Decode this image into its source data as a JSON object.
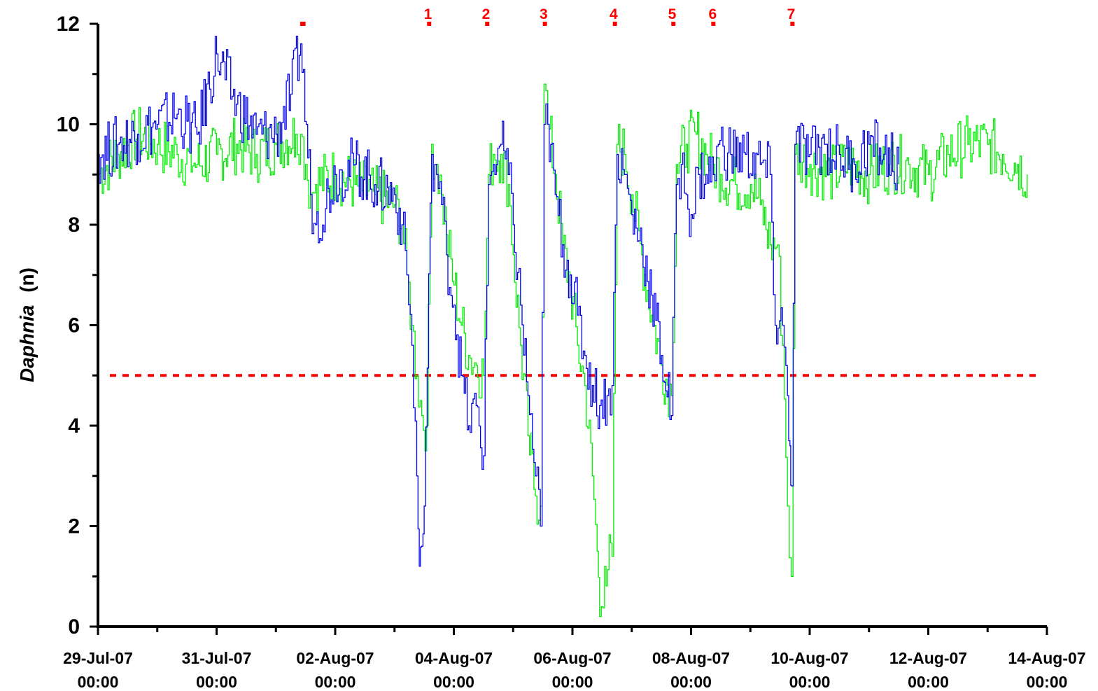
{
  "chart_data": {
    "type": "line",
    "ylabel": {
      "italic": "Daphnia",
      "unit": "(n)"
    },
    "xlabel": "",
    "ylim": [
      0,
      12
    ],
    "yticks": [
      0,
      2,
      4,
      6,
      8,
      10,
      12
    ],
    "xlim": [
      "2007-07-29T00:00",
      "2007-08-14T00:00"
    ],
    "xticks": [
      {
        "date": "2007-07-29T00:00",
        "line1": "29-Jul-07",
        "line2": "00:00"
      },
      {
        "date": "2007-07-31T00:00",
        "line1": "31-Jul-07",
        "line2": "00:00"
      },
      {
        "date": "2007-08-02T00:00",
        "line1": "02-Aug-07",
        "line2": "00:00"
      },
      {
        "date": "2007-08-04T00:00",
        "line1": "04-Aug-07",
        "line2": "00:00"
      },
      {
        "date": "2007-08-06T00:00",
        "line1": "06-Aug-07",
        "line2": "00:00"
      },
      {
        "date": "2007-08-08T00:00",
        "line1": "08-Aug-07",
        "line2": "00:00"
      },
      {
        "date": "2007-08-10T00:00",
        "line1": "10-Aug-07",
        "line2": "00:00"
      },
      {
        "date": "2007-08-12T00:00",
        "line1": "12-Aug-07",
        "line2": "00:00"
      },
      {
        "date": "2007-08-14T00:00",
        "line1": "14-Aug-07",
        "line2": "00:00"
      }
    ],
    "threshold": {
      "y": 5,
      "color": "#ff0000",
      "style": "dashed"
    },
    "events": [
      {
        "label": "",
        "start": "2007-08-01T09:50",
        "end": "2007-08-01T12:00"
      },
      {
        "label": "1",
        "start": "2007-08-03T13:10",
        "end": "2007-08-03T13:50"
      },
      {
        "label": "2",
        "start": "2007-08-04T12:40",
        "end": "2007-08-04T13:20"
      },
      {
        "label": "3",
        "start": "2007-08-05T12:00",
        "end": "2007-08-05T12:40"
      },
      {
        "label": "4",
        "start": "2007-08-06T16:20",
        "end": "2007-08-06T17:00"
      },
      {
        "label": "5",
        "start": "2007-08-07T16:00",
        "end": "2007-08-07T16:40"
      },
      {
        "label": "6",
        "start": "2007-08-08T08:10",
        "end": "2007-08-08T09:20"
      },
      {
        "label": "7",
        "start": "2007-08-09T16:10",
        "end": "2007-08-09T16:50"
      }
    ],
    "series": [
      {
        "color": "#00ee00",
        "points": [
          [
            "2007-07-29T00:00",
            9.0
          ],
          [
            "2007-07-29T08:00",
            9.4
          ],
          [
            "2007-07-29T16:00",
            9.8
          ],
          [
            "2007-07-30T00:00",
            9.6
          ],
          [
            "2007-07-30T08:00",
            9.4
          ],
          [
            "2007-07-30T16:00",
            9.2
          ],
          [
            "2007-07-31T00:00",
            9.4
          ],
          [
            "2007-07-31T08:00",
            9.6
          ],
          [
            "2007-07-31T16:00",
            9.4
          ],
          [
            "2007-08-01T00:00",
            9.6
          ],
          [
            "2007-08-01T08:00",
            9.8
          ],
          [
            "2007-08-01T10:00",
            9.8
          ],
          [
            "2007-08-01T12:00",
            9.2
          ],
          [
            "2007-08-01T14:00",
            8.6
          ],
          [
            "2007-08-01T16:00",
            8.8
          ],
          [
            "2007-08-02T00:00",
            9.0
          ],
          [
            "2007-08-02T08:00",
            8.8
          ],
          [
            "2007-08-02T16:00",
            8.6
          ],
          [
            "2007-08-03T00:00",
            8.4
          ],
          [
            "2007-08-03T03:00",
            8.0
          ],
          [
            "2007-08-03T05:00",
            7.0
          ],
          [
            "2007-08-03T07:00",
            6.0
          ],
          [
            "2007-08-03T09:00",
            5.0
          ],
          [
            "2007-08-03T11:00",
            4.2
          ],
          [
            "2007-08-03T13:00",
            4.0
          ],
          [
            "2007-08-03T15:00",
            9.6
          ],
          [
            "2007-08-03T17:00",
            9.2
          ],
          [
            "2007-08-03T19:00",
            8.6
          ],
          [
            "2007-08-03T21:00",
            7.8
          ],
          [
            "2007-08-04T00:00",
            6.8
          ],
          [
            "2007-08-04T03:00",
            6.0
          ],
          [
            "2007-08-04T06:00",
            5.4
          ],
          [
            "2007-08-04T09:00",
            5.2
          ],
          [
            "2007-08-04T12:00",
            5.0
          ],
          [
            "2007-08-04T14:00",
            9.0
          ],
          [
            "2007-08-04T16:00",
            9.4
          ],
          [
            "2007-08-04T19:00",
            9.4
          ],
          [
            "2007-08-04T22:00",
            8.8
          ],
          [
            "2007-08-05T00:00",
            7.4
          ],
          [
            "2007-08-05T03:00",
            5.6
          ],
          [
            "2007-08-05T06:00",
            3.8
          ],
          [
            "2007-08-05T09:00",
            2.6
          ],
          [
            "2007-08-05T11:00",
            2.4
          ],
          [
            "2007-08-05T12:30",
            10.8
          ],
          [
            "2007-08-05T14:00",
            10.0
          ],
          [
            "2007-08-05T17:00",
            9.0
          ],
          [
            "2007-08-05T20:00",
            7.6
          ],
          [
            "2007-08-05T23:00",
            6.8
          ],
          [
            "2007-08-06T02:00",
            5.6
          ],
          [
            "2007-08-06T05:00",
            4.8
          ],
          [
            "2007-08-06T08:00",
            3.0
          ],
          [
            "2007-08-06T10:00",
            1.5
          ],
          [
            "2007-08-06T11:00",
            0.2
          ],
          [
            "2007-08-06T13:00",
            1.2
          ],
          [
            "2007-08-06T16:00",
            1.4
          ],
          [
            "2007-08-06T18:00",
            9.6
          ],
          [
            "2007-08-06T21:00",
            9.4
          ],
          [
            "2007-08-07T00:00",
            8.6
          ],
          [
            "2007-08-07T04:00",
            7.4
          ],
          [
            "2007-08-07T08:00",
            6.2
          ],
          [
            "2007-08-07T12:00",
            5.2
          ],
          [
            "2007-08-07T16:00",
            4.6
          ],
          [
            "2007-08-07T18:00",
            9.2
          ],
          [
            "2007-08-07T22:00",
            9.6
          ],
          [
            "2007-08-08T02:00",
            9.8
          ],
          [
            "2007-08-08T06:00",
            9.4
          ],
          [
            "2007-08-08T09:00",
            9.2
          ],
          [
            "2007-08-08T12:00",
            9.0
          ],
          [
            "2007-08-08T18:00",
            8.8
          ],
          [
            "2007-08-09T00:00",
            8.8
          ],
          [
            "2007-08-09T04:00",
            8.4
          ],
          [
            "2007-08-09T08:00",
            7.6
          ],
          [
            "2007-08-09T11:00",
            7.6
          ],
          [
            "2007-08-09T13:00",
            5.6
          ],
          [
            "2007-08-09T15:00",
            2.4
          ],
          [
            "2007-08-09T16:30",
            1.0
          ],
          [
            "2007-08-09T18:00",
            9.4
          ],
          [
            "2007-08-10T00:00",
            9.2
          ],
          [
            "2007-08-10T08:00",
            9.0
          ],
          [
            "2007-08-10T16:00",
            9.2
          ],
          [
            "2007-08-11T00:00",
            9.0
          ],
          [
            "2007-08-11T08:00",
            9.2
          ],
          [
            "2007-08-11T16:00",
            9.2
          ],
          [
            "2007-08-12T00:00",
            9.0
          ],
          [
            "2007-08-12T08:00",
            9.4
          ],
          [
            "2007-08-12T16:00",
            9.6
          ],
          [
            "2007-08-13T00:00",
            9.6
          ],
          [
            "2007-08-13T06:00",
            9.4
          ],
          [
            "2007-08-13T12:00",
            9.2
          ],
          [
            "2007-08-13T16:00",
            9.0
          ]
        ]
      },
      {
        "color": "#0000ee",
        "points": [
          [
            "2007-07-29T00:00",
            9.4
          ],
          [
            "2007-07-29T08:00",
            9.6
          ],
          [
            "2007-07-29T16:00",
            9.8
          ],
          [
            "2007-07-30T00:00",
            10.0
          ],
          [
            "2007-07-30T08:00",
            10.2
          ],
          [
            "2007-07-30T16:00",
            9.8
          ],
          [
            "2007-07-31T00:00",
            11.4
          ],
          [
            "2007-07-31T08:00",
            10.4
          ],
          [
            "2007-07-31T16:00",
            9.8
          ],
          [
            "2007-08-01T00:00",
            9.8
          ],
          [
            "2007-08-01T06:00",
            10.6
          ],
          [
            "2007-08-01T10:00",
            11.6
          ],
          [
            "2007-08-01T14:00",
            8.6
          ],
          [
            "2007-08-01T16:00",
            8.0
          ],
          [
            "2007-08-02T00:00",
            9.0
          ],
          [
            "2007-08-02T08:00",
            9.2
          ],
          [
            "2007-08-02T16:00",
            8.8
          ],
          [
            "2007-08-03T00:00",
            8.6
          ],
          [
            "2007-08-03T03:00",
            8.0
          ],
          [
            "2007-08-03T05:00",
            7.0
          ],
          [
            "2007-08-03T07:00",
            5.6
          ],
          [
            "2007-08-03T09:00",
            3.0
          ],
          [
            "2007-08-03T10:00",
            1.2
          ],
          [
            "2007-08-03T11:00",
            1.6
          ],
          [
            "2007-08-03T12:00",
            2.4
          ],
          [
            "2007-08-03T15:00",
            9.4
          ],
          [
            "2007-08-03T17:00",
            9.0
          ],
          [
            "2007-08-03T19:00",
            8.4
          ],
          [
            "2007-08-03T21:00",
            7.4
          ],
          [
            "2007-08-04T00:00",
            6.4
          ],
          [
            "2007-08-04T03:00",
            5.0
          ],
          [
            "2007-08-04T06:00",
            4.0
          ],
          [
            "2007-08-04T09:00",
            4.4
          ],
          [
            "2007-08-04T12:00",
            3.4
          ],
          [
            "2007-08-04T14:00",
            8.8
          ],
          [
            "2007-08-04T16:00",
            9.2
          ],
          [
            "2007-08-04T19:00",
            9.6
          ],
          [
            "2007-08-04T22:00",
            9.0
          ],
          [
            "2007-08-05T00:00",
            8.0
          ],
          [
            "2007-08-05T03:00",
            6.4
          ],
          [
            "2007-08-05T06:00",
            4.6
          ],
          [
            "2007-08-05T09:00",
            3.0
          ],
          [
            "2007-08-05T11:00",
            2.0
          ],
          [
            "2007-08-05T12:30",
            10.0
          ],
          [
            "2007-08-05T14:00",
            10.0
          ],
          [
            "2007-08-05T17:00",
            8.6
          ],
          [
            "2007-08-05T20:00",
            7.6
          ],
          [
            "2007-08-05T23:00",
            7.0
          ],
          [
            "2007-08-06T02:00",
            6.2
          ],
          [
            "2007-08-06T05:00",
            5.4
          ],
          [
            "2007-08-06T08:00",
            4.8
          ],
          [
            "2007-08-06T11:00",
            4.4
          ],
          [
            "2007-08-06T14:00",
            4.6
          ],
          [
            "2007-08-06T16:00",
            4.8
          ],
          [
            "2007-08-06T18:00",
            9.4
          ],
          [
            "2007-08-06T21:00",
            9.0
          ],
          [
            "2007-08-07T00:00",
            8.2
          ],
          [
            "2007-08-07T04:00",
            7.6
          ],
          [
            "2007-08-07T08:00",
            6.6
          ],
          [
            "2007-08-07T12:00",
            5.4
          ],
          [
            "2007-08-07T16:00",
            4.2
          ],
          [
            "2007-08-07T18:00",
            8.8
          ],
          [
            "2007-08-07T20:00",
            9.2
          ],
          [
            "2007-08-07T22:00",
            8.6
          ],
          [
            "2007-08-08T00:00",
            8.2
          ],
          [
            "2007-08-08T03:00",
            9.0
          ],
          [
            "2007-08-08T06:00",
            9.0
          ],
          [
            "2007-08-08T09:00",
            9.0
          ],
          [
            "2007-08-08T11:00",
            9.6
          ],
          [
            "2007-08-08T16:00",
            9.4
          ],
          [
            "2007-08-08T22:00",
            9.4
          ],
          [
            "2007-08-09T04:00",
            9.2
          ],
          [
            "2007-08-09T08:00",
            9.0
          ],
          [
            "2007-08-09T10:00",
            6.0
          ],
          [
            "2007-08-09T13:00",
            6.0
          ],
          [
            "2007-08-09T15:00",
            4.6
          ],
          [
            "2007-08-09T16:00",
            3.6
          ],
          [
            "2007-08-09T16:40",
            2.8
          ],
          [
            "2007-08-09T18:00",
            9.6
          ],
          [
            "2007-08-10T00:00",
            9.4
          ],
          [
            "2007-08-10T06:00",
            9.6
          ],
          [
            "2007-08-10T12:00",
            9.4
          ],
          [
            "2007-08-10T18:00",
            9.2
          ],
          [
            "2007-08-11T00:00",
            9.6
          ],
          [
            "2007-08-11T06:00",
            9.4
          ],
          [
            "2007-08-11T12:00",
            9.2
          ]
        ]
      }
    ]
  }
}
